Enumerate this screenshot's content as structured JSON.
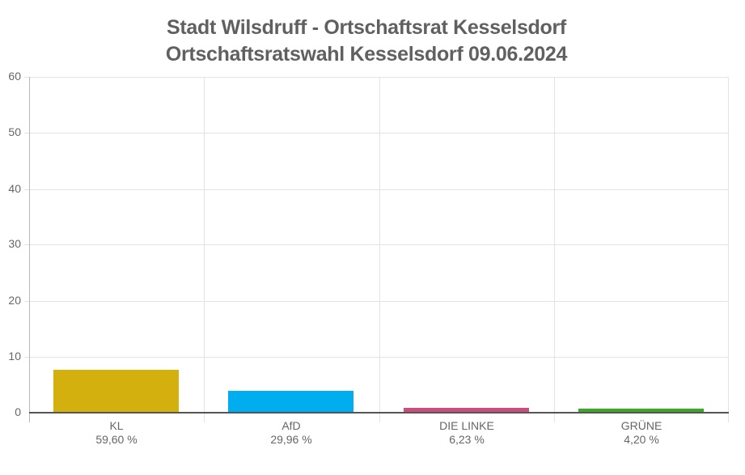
{
  "title": {
    "line1": "Stadt Wilsdruff - Ortschaftsrat Kesselsdorf",
    "line2": "Ortschaftsratswahl Kesselsdorf 09.06.2024"
  },
  "yaxis": {
    "ticks": [
      "60",
      "50",
      "40",
      "30",
      "20",
      "10",
      "0"
    ]
  },
  "bars": [
    {
      "name": "KL",
      "pct": "59,60 %",
      "value": 7.45,
      "color": "#d4b00f"
    },
    {
      "name": "AfD",
      "pct": "29,96 %",
      "value": 3.75,
      "color": "#00aeef"
    },
    {
      "name": "DIE LINKE",
      "pct": "6,23 %",
      "value": 0.78,
      "color": "#c9507e"
    },
    {
      "name": "GRÜNE",
      "pct": "4,20 %",
      "value": 0.53,
      "color": "#3aa925"
    }
  ],
  "chart_data": {
    "type": "bar",
    "title": "Stadt Wilsdruff - Ortschaftsrat Kesselsdorf / Ortschaftsratswahl Kesselsdorf 09.06.2024",
    "categories": [
      "KL",
      "AfD",
      "DIE LINKE",
      "GRÜNE"
    ],
    "category_sublabels": [
      "59,60 %",
      "29,96 %",
      "6,23 %",
      "4,20 %"
    ],
    "values": [
      7.45,
      3.75,
      0.78,
      0.53
    ],
    "colors": [
      "#d4b00f",
      "#00aeef",
      "#c9507e",
      "#3aa925"
    ],
    "xlabel": "",
    "ylabel": "",
    "ylim": [
      0,
      60
    ],
    "yticks": [
      0,
      10,
      20,
      30,
      40,
      50,
      60
    ],
    "grid": true,
    "legend": "none"
  }
}
